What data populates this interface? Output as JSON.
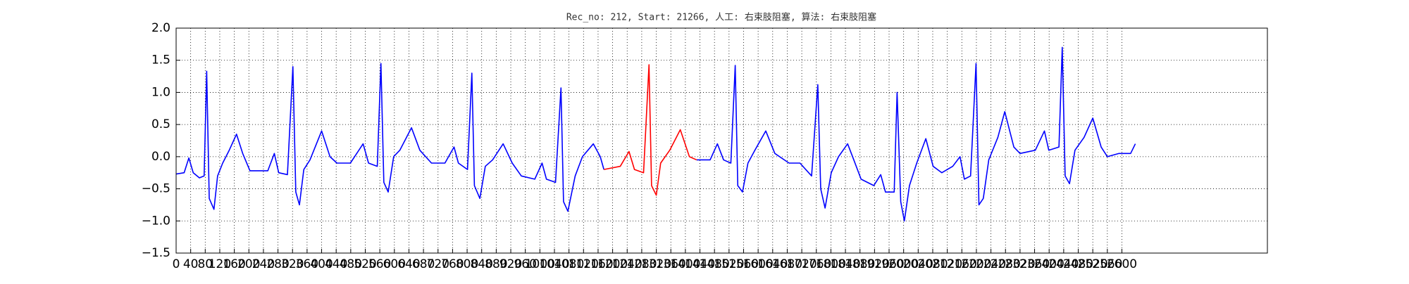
{
  "chart_data": {
    "type": "line",
    "title": "Rec_no: 212, Start: 21266, 人工: 右束肢阻塞, 算法: 右束肢阻塞",
    "xlim": [
      0,
      3000
    ],
    "ylim": [
      -1.5,
      2.0
    ],
    "xticks": [
      0,
      40,
      80,
      120,
      160,
      200,
      240,
      280,
      320,
      360,
      400,
      440,
      480,
      520,
      560,
      600,
      640,
      680,
      720,
      760,
      800,
      840,
      880,
      920,
      960,
      1000,
      1040,
      1080,
      1120,
      1160,
      1200,
      1240,
      1280,
      1320,
      1360,
      1400,
      1440,
      1480,
      1520,
      1560,
      1600,
      1640,
      1680,
      1720,
      1760,
      1800,
      1840,
      1880,
      1920,
      1960,
      2000,
      2040,
      2080,
      2120,
      2160,
      2200,
      2240,
      2280,
      2320,
      2360,
      2400,
      2440,
      2480,
      2520,
      2560,
      2600
    ],
    "yticks": [
      {
        "value": -1.5,
        "label": "−1.5"
      },
      {
        "value": -1.0,
        "label": "−1.0"
      },
      {
        "value": -0.5,
        "label": "−0.5"
      },
      {
        "value": 0,
        "label": "0.0"
      },
      {
        "value": 0.5,
        "label": "0.5"
      },
      {
        "value": 1.0,
        "label": "1.0"
      },
      {
        "value": 1.5,
        "label": "1.5"
      },
      {
        "value": 2.0,
        "label": "2.0"
      }
    ],
    "grid": true,
    "series": [
      {
        "color": "#0000ff",
        "x": [
          0,
          22,
          35,
          47,
          64,
          77,
          84,
          91,
          104,
          114,
          128,
          146,
          166,
          183,
          203,
          232,
          252,
          270,
          282,
          306,
          321,
          329,
          339,
          351,
          368,
          400,
          423,
          442,
          479,
          514,
          529,
          553,
          563,
          571,
          583,
          598,
          615,
          647,
          670,
          702,
          739,
          764,
          776,
          801,
          813,
          820,
          835,
          850,
          870,
          899,
          924,
          949,
          986,
          1006,
          1018,
          1043,
          1058,
          1065,
          1077,
          1097,
          1117,
          1147,
          1166,
          1176,
          1300,
          1431,
          1468,
          1488,
          1505,
          1525,
          1537,
          1544,
          1557,
          1572,
          1591,
          1621,
          1646,
          1685,
          1715,
          1747,
          1764,
          1772,
          1784,
          1801,
          1821,
          1846,
          1863,
          1883,
          1918,
          1937,
          1950,
          1974,
          1982,
          1992,
          2002,
          2016,
          2036,
          2061,
          2081,
          2105,
          2135,
          2155,
          2167,
          2184,
          2199,
          2207,
          2219,
          2234,
          2259,
          2278,
          2303,
          2320,
          2362,
          2387,
          2399,
          2427,
          2436,
          2444,
          2456,
          2471,
          2496,
          2520,
          2543,
          2560,
          2592,
          2624,
          2637
        ],
        "values": [
          -0.27,
          -0.25,
          -0.02,
          -0.25,
          -0.33,
          -0.3,
          1.33,
          -0.65,
          -0.82,
          -0.3,
          -0.1,
          0.1,
          0.35,
          0.05,
          -0.22,
          -0.22,
          -0.22,
          0.05,
          -0.25,
          -0.28,
          1.4,
          -0.55,
          -0.75,
          -0.2,
          -0.05,
          0.4,
          0.0,
          -0.1,
          -0.1,
          0.2,
          -0.1,
          -0.15,
          1.45,
          -0.4,
          -0.55,
          0.0,
          0.1,
          0.45,
          0.1,
          -0.1,
          -0.1,
          0.15,
          -0.1,
          -0.2,
          1.3,
          -0.45,
          -0.65,
          -0.15,
          -0.05,
          0.2,
          -0.1,
          -0.3,
          -0.35,
          -0.1,
          -0.35,
          -0.4,
          1.07,
          -0.7,
          -0.85,
          -0.3,
          0.0,
          0.2,
          0.0,
          -0.2,
          null,
          -0.05,
          -0.05,
          0.2,
          -0.05,
          -0.1,
          1.42,
          -0.45,
          -0.55,
          -0.1,
          0.1,
          0.4,
          0.05,
          -0.1,
          -0.1,
          -0.3,
          1.12,
          -0.5,
          -0.8,
          -0.25,
          0.0,
          0.2,
          -0.05,
          -0.35,
          -0.45,
          -0.28,
          -0.55,
          -0.55,
          1.0,
          -0.7,
          -1.0,
          -0.45,
          -0.1,
          0.28,
          -0.15,
          -0.25,
          -0.15,
          0.0,
          -0.35,
          -0.3,
          1.45,
          -0.75,
          -0.65,
          -0.05,
          0.3,
          0.7,
          0.15,
          0.05,
          0.1,
          0.4,
          0.1,
          0.15,
          1.7,
          -0.3,
          -0.42,
          0.1,
          0.3,
          0.6,
          0.15,
          0.0,
          0.05,
          0.05,
          0.2
        ]
      },
      {
        "color": "#ff0000",
        "x": [
          1176,
          1221,
          1245,
          1260,
          1285,
          1300,
          1307,
          1320,
          1332,
          1357,
          1386,
          1411,
          1431
        ],
        "values": [
          -0.2,
          -0.15,
          0.08,
          -0.2,
          -0.25,
          1.43,
          -0.45,
          -0.6,
          -0.1,
          0.1,
          0.42,
          0.0,
          -0.05
        ]
      }
    ]
  }
}
